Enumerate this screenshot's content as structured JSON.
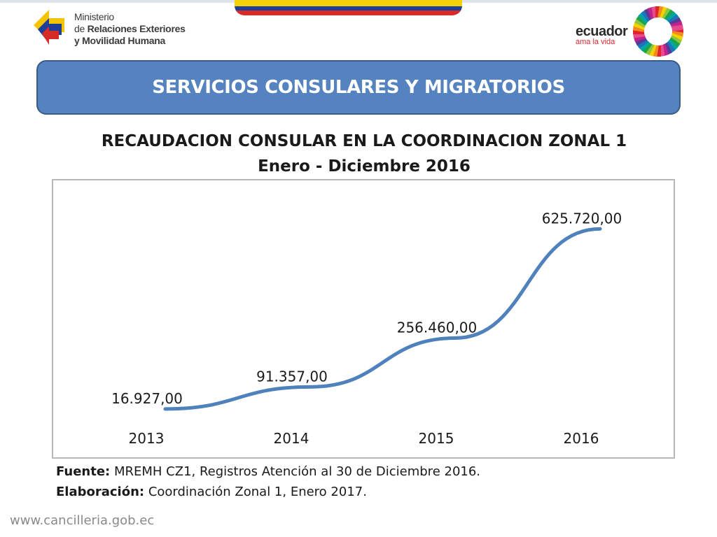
{
  "header": {
    "ministry_line1": "Ministerio",
    "ministry_line2_pre": "de ",
    "ministry_line2_bold": "Relaciones Exteriores",
    "ministry_line3": "y Movilidad Humana",
    "brand_name": "ecuador",
    "brand_tagline": "ama la vida"
  },
  "banner": {
    "title": "SERVICIOS CONSULARES Y MIGRATORIOS"
  },
  "chart_data": {
    "type": "line",
    "title": "RECAUDACION CONSULAR EN LA COORDINACION ZONAL 1",
    "subtitle": "Enero - Diciembre 2016",
    "categories": [
      "2013",
      "2014",
      "2015",
      "2016"
    ],
    "values": [
      16927.0,
      91357.0,
      256460.0,
      625720.0
    ],
    "data_labels": [
      "16.927,00",
      "91.357,00",
      "256.460,00",
      "625.720,00"
    ],
    "color": "#4f81bd",
    "grid": false,
    "legend": "none",
    "ylim": [
      0,
      700000
    ]
  },
  "source": {
    "fuente_label": "Fuente:",
    "fuente_text": " MREMH CZ1, Registros Atención al 30 de Diciembre 2016.",
    "elaboracion_label": "Elaboración:",
    "elaboracion_text": " Coordinación Zonal 1, Enero 2017."
  },
  "footer": {
    "url": "www.cancilleria.gob.ec"
  },
  "colors": {
    "flag_yellow": "#f5d10a",
    "flag_blue": "#1f3e9a",
    "flag_red": "#d62b27",
    "banner": "#5483c0"
  }
}
